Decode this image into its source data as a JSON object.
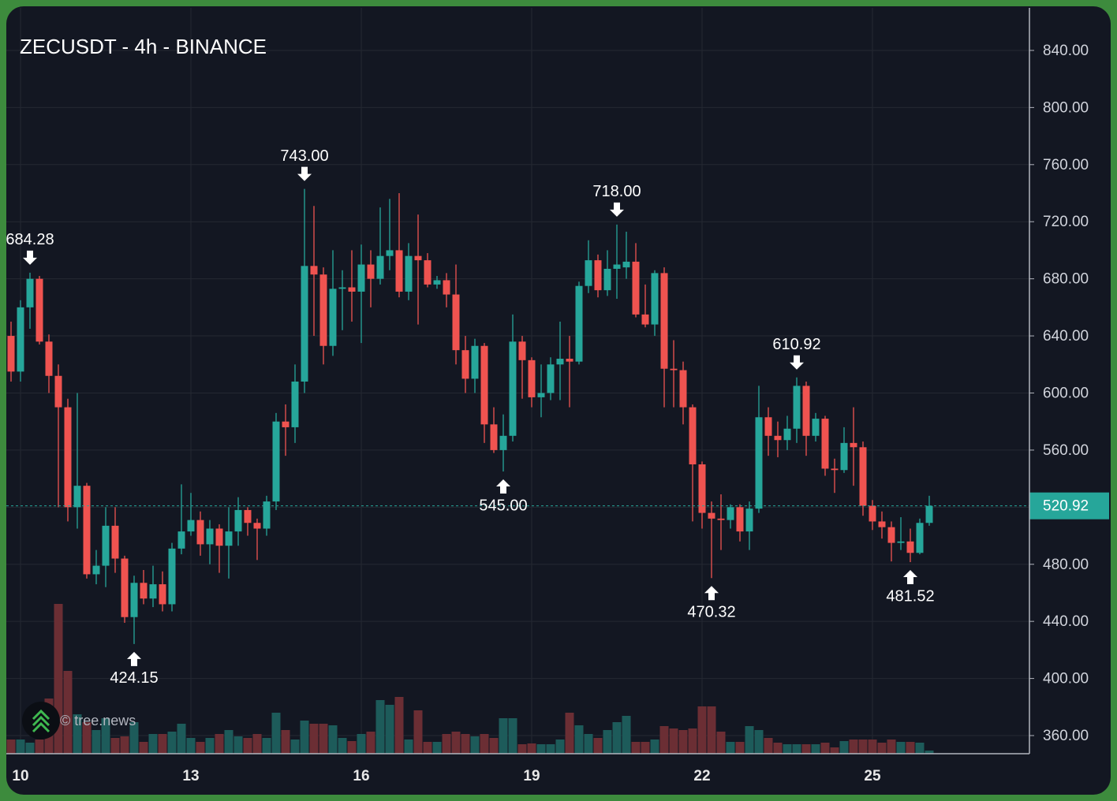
{
  "chart_data": {
    "type": "candlestick",
    "title": "ZECUSDT - 4h - BINANCE",
    "watermark": "© tree.news",
    "categories": [
      null,
      "10",
      null,
      null,
      null,
      null,
      null,
      null,
      null,
      null,
      null,
      null,
      null,
      null,
      null,
      null,
      null,
      null,
      null,
      "13",
      null,
      null,
      null,
      null,
      null,
      null,
      null,
      null,
      null,
      null,
      null,
      null,
      null,
      null,
      null,
      null,
      null,
      "16",
      null,
      null,
      null,
      null,
      null,
      null,
      null,
      null,
      null,
      null,
      null,
      null,
      null,
      null,
      null,
      null,
      null,
      "19",
      null,
      null,
      null,
      null,
      null,
      null,
      null,
      null,
      null,
      null,
      null,
      null,
      null,
      null,
      null,
      null,
      null,
      "22",
      null,
      null,
      null,
      null,
      null,
      null,
      null,
      null,
      null,
      null,
      null,
      null,
      null,
      null,
      null,
      null,
      null,
      "25",
      null,
      null,
      null,
      null,
      null,
      null
    ],
    "open": [
      640,
      615,
      660,
      680,
      636,
      612,
      590,
      520,
      535,
      473,
      479,
      507,
      484,
      443,
      467,
      456,
      466,
      452,
      491,
      503,
      511,
      494,
      505,
      493,
      503,
      518,
      509,
      505,
      524,
      580,
      576,
      608,
      689,
      683,
      633,
      673,
      674,
      671,
      690,
      680,
      696,
      700,
      671,
      696,
      693,
      676,
      679,
      669,
      630,
      610,
      633,
      578,
      560,
      570,
      636,
      623,
      597,
      600,
      620,
      624,
      622,
      675,
      693,
      672,
      687,
      688,
      692,
      655,
      648,
      684,
      617,
      616,
      590,
      550,
      516,
      512,
      511,
      520,
      503,
      519,
      583,
      570,
      567,
      575,
      605,
      570,
      582,
      547,
      546,
      565,
      562,
      521,
      510,
      506,
      495,
      496,
      488,
      509
    ],
    "high": [
      650,
      665,
      684.28,
      682,
      641,
      620,
      596,
      600,
      537,
      490,
      520,
      520,
      486,
      472,
      476,
      479,
      475,
      495,
      536,
      530,
      517,
      511,
      508,
      520,
      527,
      520,
      512,
      528,
      586,
      592,
      620,
      743,
      731,
      688,
      700,
      686,
      700,
      704,
      700,
      730,
      736,
      740,
      705,
      725,
      698,
      682,
      684,
      690,
      640,
      638,
      635,
      590,
      585,
      655,
      640,
      625,
      620,
      625,
      650,
      640,
      678,
      707,
      697,
      700,
      718,
      713,
      705,
      676,
      686,
      688,
      637,
      622,
      592,
      552,
      524,
      529,
      522,
      522,
      524,
      605,
      590,
      580,
      584,
      610.92,
      608,
      586,
      584,
      554,
      576,
      590,
      566,
      525,
      517,
      510,
      513,
      505,
      512,
      528
    ],
    "low": [
      608,
      608,
      645,
      634,
      600,
      520,
      510,
      505,
      470,
      466,
      464,
      474,
      439,
      424.15,
      452,
      450,
      447,
      447,
      487,
      500,
      486,
      480,
      474,
      470,
      493,
      500,
      483,
      500,
      518,
      556,
      565,
      600,
      640,
      620,
      626,
      644,
      650,
      635,
      660,
      676,
      686,
      667,
      665,
      648,
      674,
      673,
      660,
      620,
      600,
      600,
      565,
      558,
      545,
      566,
      596,
      590,
      583,
      595,
      595,
      590,
      620,
      670,
      667,
      668,
      666,
      680,
      653,
      646,
      640,
      590,
      590,
      578,
      510,
      505,
      470.32,
      490,
      505,
      496,
      490,
      516,
      556,
      555,
      560,
      565,
      556,
      566,
      542,
      530,
      544,
      535,
      514,
      504,
      498,
      482,
      490,
      481.52,
      487,
      507
    ],
    "close": [
      615,
      660,
      680,
      636,
      612,
      590,
      520,
      535,
      473,
      479,
      507,
      484,
      443,
      467,
      456,
      466,
      452,
      491,
      503,
      511,
      494,
      505,
      493,
      503,
      518,
      509,
      505,
      524,
      580,
      576,
      608,
      689,
      683,
      633,
      673,
      674,
      671,
      690,
      680,
      696,
      700,
      671,
      696,
      693,
      676,
      679,
      669,
      630,
      610,
      633,
      578,
      560,
      570,
      636,
      623,
      597,
      600,
      620,
      624,
      622,
      675,
      693,
      672,
      687,
      690,
      692,
      655,
      648,
      684,
      617,
      616,
      590,
      550,
      516,
      512,
      511,
      520,
      503,
      519,
      583,
      570,
      567,
      575,
      605,
      570,
      582,
      547,
      546,
      565,
      562,
      521,
      510,
      506,
      495,
      496,
      488,
      509,
      520.92
    ],
    "volume": [
      18,
      18,
      14,
      18,
      70,
      190,
      105,
      50,
      40,
      30,
      45,
      20,
      22,
      40,
      15,
      25,
      25,
      28,
      38,
      20,
      15,
      20,
      25,
      30,
      22,
      20,
      25,
      20,
      52,
      30,
      18,
      42,
      38,
      38,
      36,
      20,
      16,
      25,
      28,
      68,
      62,
      72,
      18,
      55,
      15,
      15,
      25,
      28,
      25,
      22,
      25,
      20,
      45,
      45,
      12,
      13,
      12,
      12,
      18,
      52,
      36,
      25,
      20,
      30,
      40,
      48,
      15,
      15,
      18,
      35,
      32,
      30,
      32,
      60,
      60,
      28,
      15,
      15,
      35,
      30,
      20,
      14,
      12,
      12,
      12,
      12,
      14,
      8,
      16,
      18,
      18,
      18,
      14,
      18,
      15,
      15,
      14,
      4
    ],
    "ylim": [
      347.3,
      869.8
    ],
    "yticks": [
      {
        "value": 360,
        "label": "360.00"
      },
      {
        "value": 400,
        "label": "400.00"
      },
      {
        "value": 440,
        "label": "440.00"
      },
      {
        "value": 480,
        "label": "480.00"
      },
      {
        "value": 520,
        "label": "520.00"
      },
      {
        "value": 560,
        "label": "560.00"
      },
      {
        "value": 600,
        "label": "600.00"
      },
      {
        "value": 640,
        "label": "640.00"
      },
      {
        "value": 680,
        "label": "680.00"
      },
      {
        "value": 720,
        "label": "720.00"
      },
      {
        "value": 760,
        "label": "760.00"
      },
      {
        "value": 800,
        "label": "800.00"
      },
      {
        "value": 840,
        "label": "840.00"
      }
    ],
    "annotations": [
      {
        "value": 684.28,
        "label": "684.28"
      },
      {
        "value": 743,
        "label": "743.00"
      },
      {
        "value": 424.15,
        "label": "424.15"
      },
      {
        "value": 545,
        "label": "545.00"
      },
      {
        "value": 718,
        "label": "718.00"
      },
      {
        "value": 470.32,
        "label": "470.32"
      },
      {
        "value": 610.92,
        "label": "610.92"
      },
      {
        "value": 481.52,
        "label": "481.52"
      }
    ],
    "up_color": "#26a69a",
    "down_color": "#ef5350",
    "up_volume_color": "#1d5b5a",
    "down_volume_color": "#6b2e34",
    "grid": true,
    "last_price_line": true
  }
}
